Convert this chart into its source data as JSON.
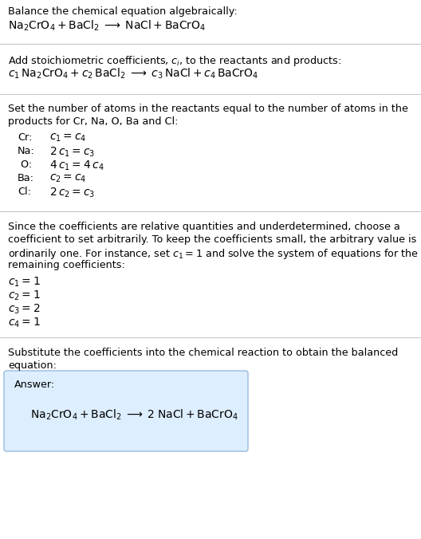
{
  "bg_color": "#ffffff",
  "text_color": "#000000",
  "section1_title": "Balance the chemical equation algebraically:",
  "section2_title": "Add stoichiometric coefficients, $c_i$, to the reactants and products:",
  "section3_title1": "Set the number of atoms in the reactants equal to the number of atoms in the",
  "section3_title2": "products for Cr, Na, O, Ba and Cl:",
  "section4_title1": "Since the coefficients are relative quantities and underdetermined, choose a",
  "section4_title2": "coefficient to set arbitrarily. To keep the coefficients small, the arbitrary value is",
  "section4_title3": "ordinarily one. For instance, set $c_1 = 1$ and solve the system of equations for the",
  "section4_title4": "remaining coefficients:",
  "section5_title1": "Substitute the coefficients into the chemical reaction to obtain the balanced",
  "section5_title2": "equation:",
  "answer_label": "Answer:",
  "answer_box_color": "#ddeeff",
  "answer_box_edge": "#99bbdd",
  "atom_labels": [
    "Cr:",
    "Na:",
    " O:",
    "Ba:",
    "Cl:"
  ],
  "atom_eqs": [
    "$c_1 = c_4$",
    "$2\\,c_1 = c_3$",
    "$4\\,c_1 = 4\\,c_4$",
    "$c_2 = c_4$",
    "$2\\,c_2 = c_3$"
  ],
  "coeff_lines": [
    "$c_1 = 1$",
    "$c_2 = 1$",
    "$c_3 = 2$",
    "$c_4 = 1$"
  ],
  "hline_color": "#c8c8c8",
  "hline_lw": 0.8
}
